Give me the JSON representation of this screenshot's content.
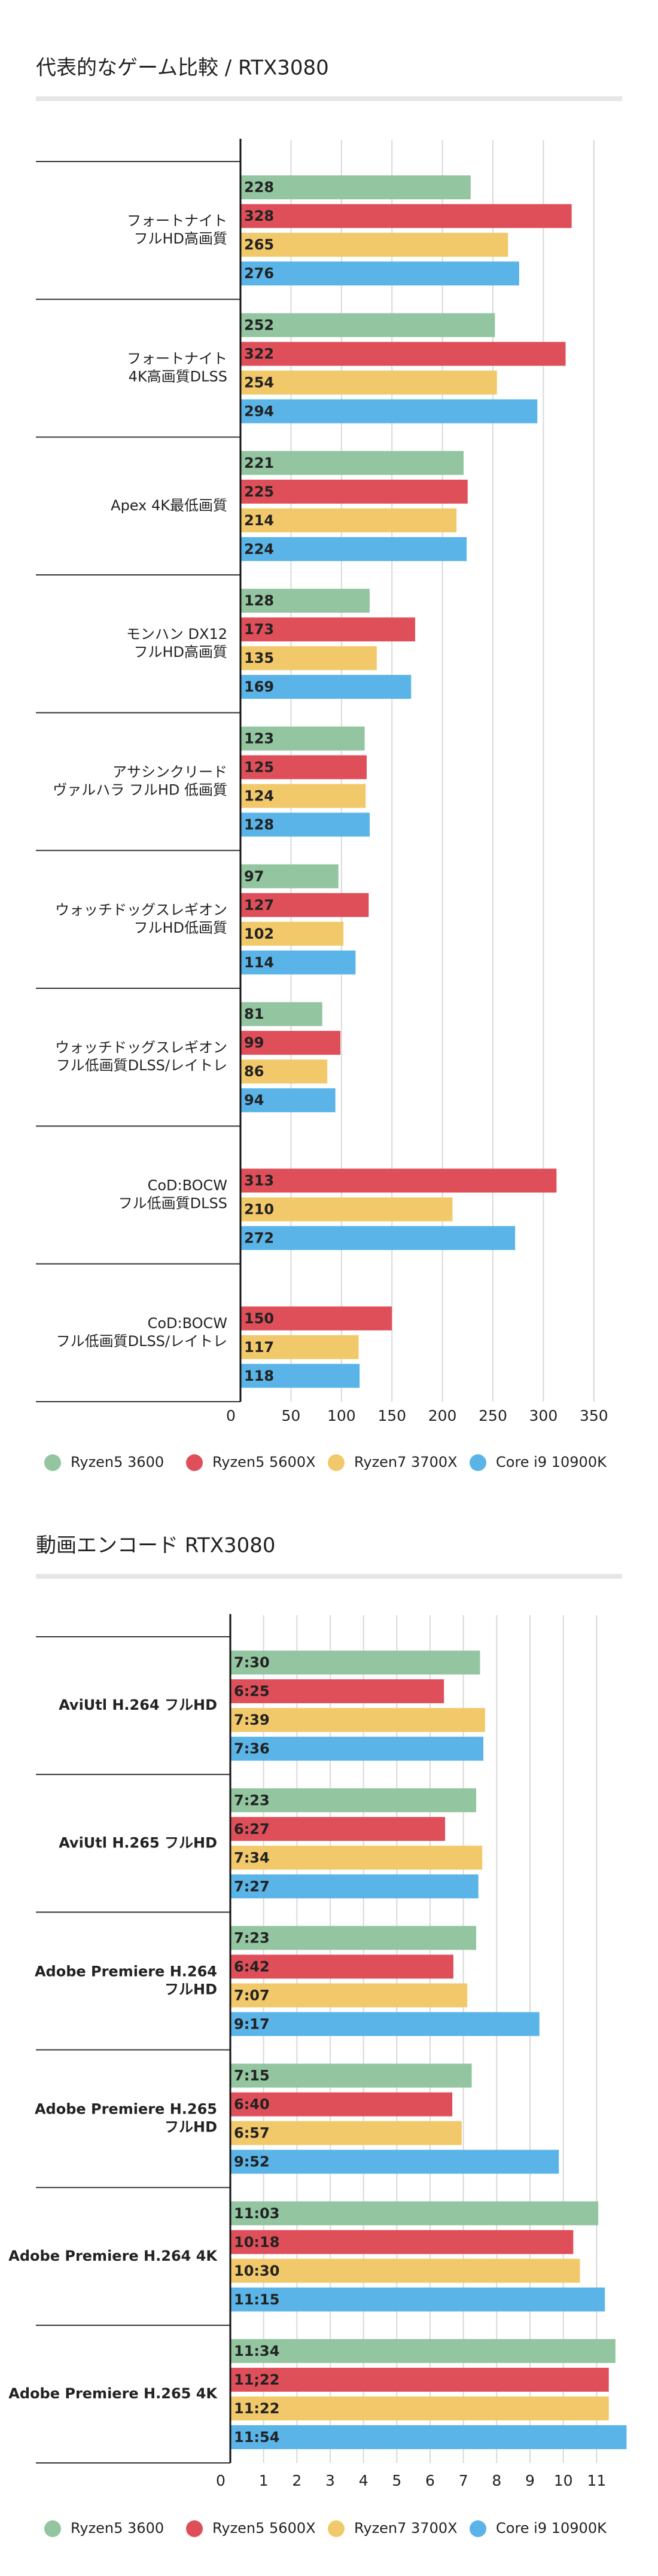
{
  "chart_data": [
    {
      "type": "bar",
      "horizontal": true,
      "title": "代表的なゲーム比較 / RTX3080",
      "categories": [
        "フォートナイト\nフルHD高画質",
        "フォートナイト\n4K高画質DLSS",
        "Apex 4K最低画質",
        "モンハン DX12\nフルHD高画質",
        "アサシンクリード\nヴァルハラ フルHD 低画質",
        "ウォッチドッグスレギオン\nフルHD低画質",
        "ウォッチドッグスレギオン\nフル低画質DLSS/レイトレ",
        "CoD:BOCW\nフル低画質DLSS",
        "CoD:BOCW\nフル低画質DLSS/レイトレ"
      ],
      "series": [
        {
          "name": "Ryzen5 3600",
          "color": "#93c5a0",
          "values": [
            228,
            252,
            221,
            128,
            123,
            97,
            81,
            null,
            null
          ]
        },
        {
          "name": "Ryzen5 5600X",
          "color": "#df4f5a",
          "values": [
            328,
            322,
            225,
            173,
            125,
            127,
            99,
            313,
            150
          ]
        },
        {
          "name": "Ryzen7 3700X",
          "color": "#f2c96a",
          "values": [
            265,
            254,
            214,
            135,
            124,
            102,
            86,
            210,
            117
          ]
        },
        {
          "name": "Core i9 10900K",
          "color": "#5ab4e8",
          "values": [
            276,
            294,
            224,
            169,
            128,
            114,
            94,
            272,
            118
          ]
        }
      ],
      "xlim": [
        0,
        375
      ],
      "xticks": [
        0,
        50,
        100,
        150,
        200,
        250,
        300,
        350
      ],
      "grid": true,
      "legend": "bottom"
    },
    {
      "type": "bar",
      "horizontal": true,
      "title": "動画エンコード RTX3080",
      "categories": [
        "AviUtl H.264 フルHD",
        "AviUtl H.265 フルHD",
        "Adobe Premiere H.264\nフルHD",
        "Adobe Premiere H.265\nフルHD",
        "Adobe Premiere H.264 4K",
        "Adobe Premiere H.265 4K"
      ],
      "series": [
        {
          "name": "Ryzen5 3600",
          "color": "#93c5a0",
          "values": [
            7.5,
            7.3833,
            7.3833,
            7.25,
            11.05,
            11.5667
          ],
          "value_labels": [
            "7:30",
            "7:23",
            "7:23",
            "7:15",
            "11:03",
            "11:34"
          ]
        },
        {
          "name": "Ryzen5 5600X",
          "color": "#df4f5a",
          "values": [
            6.4167,
            6.45,
            6.7,
            6.6667,
            10.3,
            11.3667
          ],
          "value_labels": [
            "6:25",
            "6:27",
            "6:42",
            "6:40",
            "10:18",
            "11;22"
          ]
        },
        {
          "name": "Ryzen7 3700X",
          "color": "#f2c96a",
          "values": [
            7.65,
            7.5667,
            7.1167,
            6.95,
            10.5,
            11.3667
          ],
          "value_labels": [
            "7:39",
            "7:34",
            "7:07",
            "6:57",
            "10:30",
            "11:22"
          ]
        },
        {
          "name": "Core i9 10900K",
          "color": "#5ab4e8",
          "values": [
            7.6,
            7.45,
            9.2833,
            9.8667,
            11.25,
            11.9
          ],
          "value_labels": [
            "7:36",
            "7:27",
            "9:17",
            "9:52",
            "11:15",
            "11:54"
          ]
        }
      ],
      "xlim": [
        0,
        12
      ],
      "xticks": [
        0,
        1,
        2,
        3,
        4,
        5,
        6,
        7,
        8,
        9,
        10,
        11
      ],
      "grid": true,
      "legend": "bottom"
    }
  ]
}
